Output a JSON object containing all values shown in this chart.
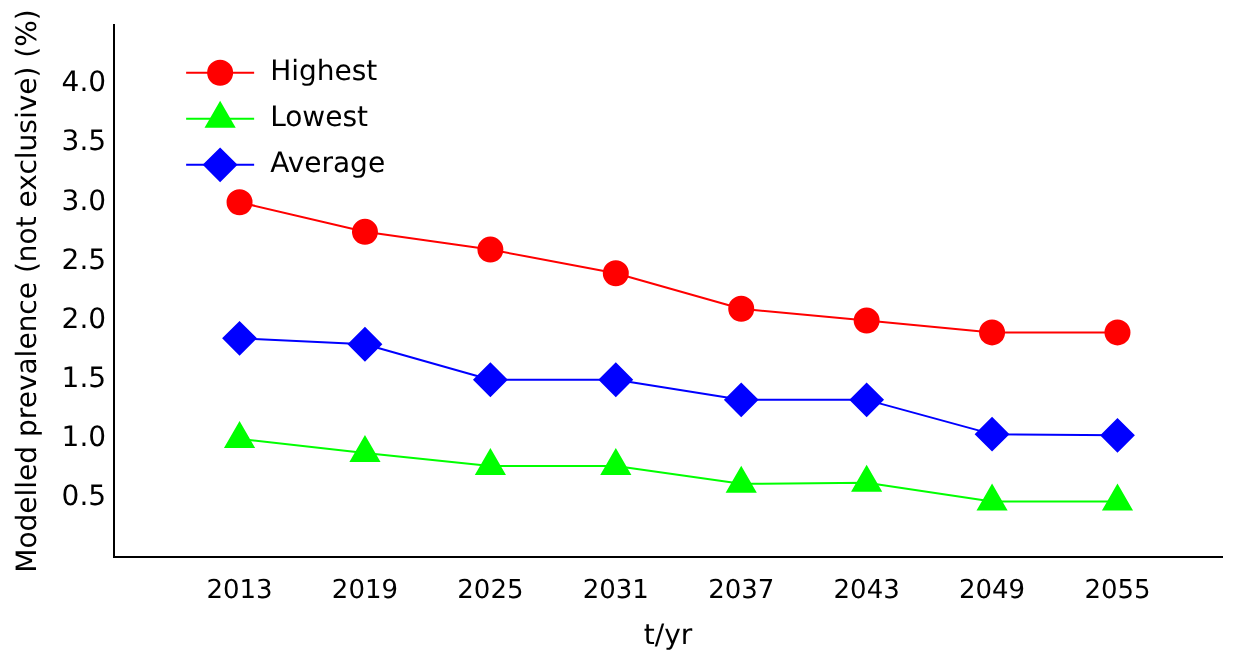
{
  "chart_data": {
    "type": "line",
    "xlabel": "t/yr",
    "ylabel": "Modelled prevalence (not exclusive) (%)",
    "x": [
      2013,
      2019,
      2025,
      2031,
      2037,
      2043,
      2049,
      2055
    ],
    "xlim": [
      2007,
      2060
    ],
    "xticks": [
      2013,
      2019,
      2025,
      2031,
      2037,
      2043,
      2049,
      2055
    ],
    "ylim": [
      0,
      4.5
    ],
    "yticks": [
      0.5,
      {
        "value": 1,
        "label": "1.0"
      },
      1.5,
      {
        "value": 2,
        "label": "2.0"
      },
      2.5,
      {
        "value": 3,
        "label": "3.0"
      },
      3.5,
      {
        "value": 4,
        "label": "4.0"
      }
    ],
    "grid": false,
    "legend": "top left",
    "line_style": "solid",
    "series": [
      {
        "name": "Highest",
        "color": "#ff0000",
        "marker": "circle",
        "values": [
          3.0,
          2.75,
          2.6,
          2.4,
          2.1,
          2.0,
          1.9,
          1.9
        ]
      },
      {
        "name": "Lowest",
        "color": "#00ff00",
        "marker": "triangle",
        "values": [
          1.0,
          0.88,
          0.77,
          0.77,
          0.62,
          0.63,
          0.47,
          0.47
        ]
      },
      {
        "name": "Average",
        "color": "#0000ff",
        "marker": "diamond",
        "values": [
          1.85,
          1.8,
          1.5,
          1.5,
          1.33,
          1.33,
          1.04,
          1.03
        ]
      }
    ]
  }
}
